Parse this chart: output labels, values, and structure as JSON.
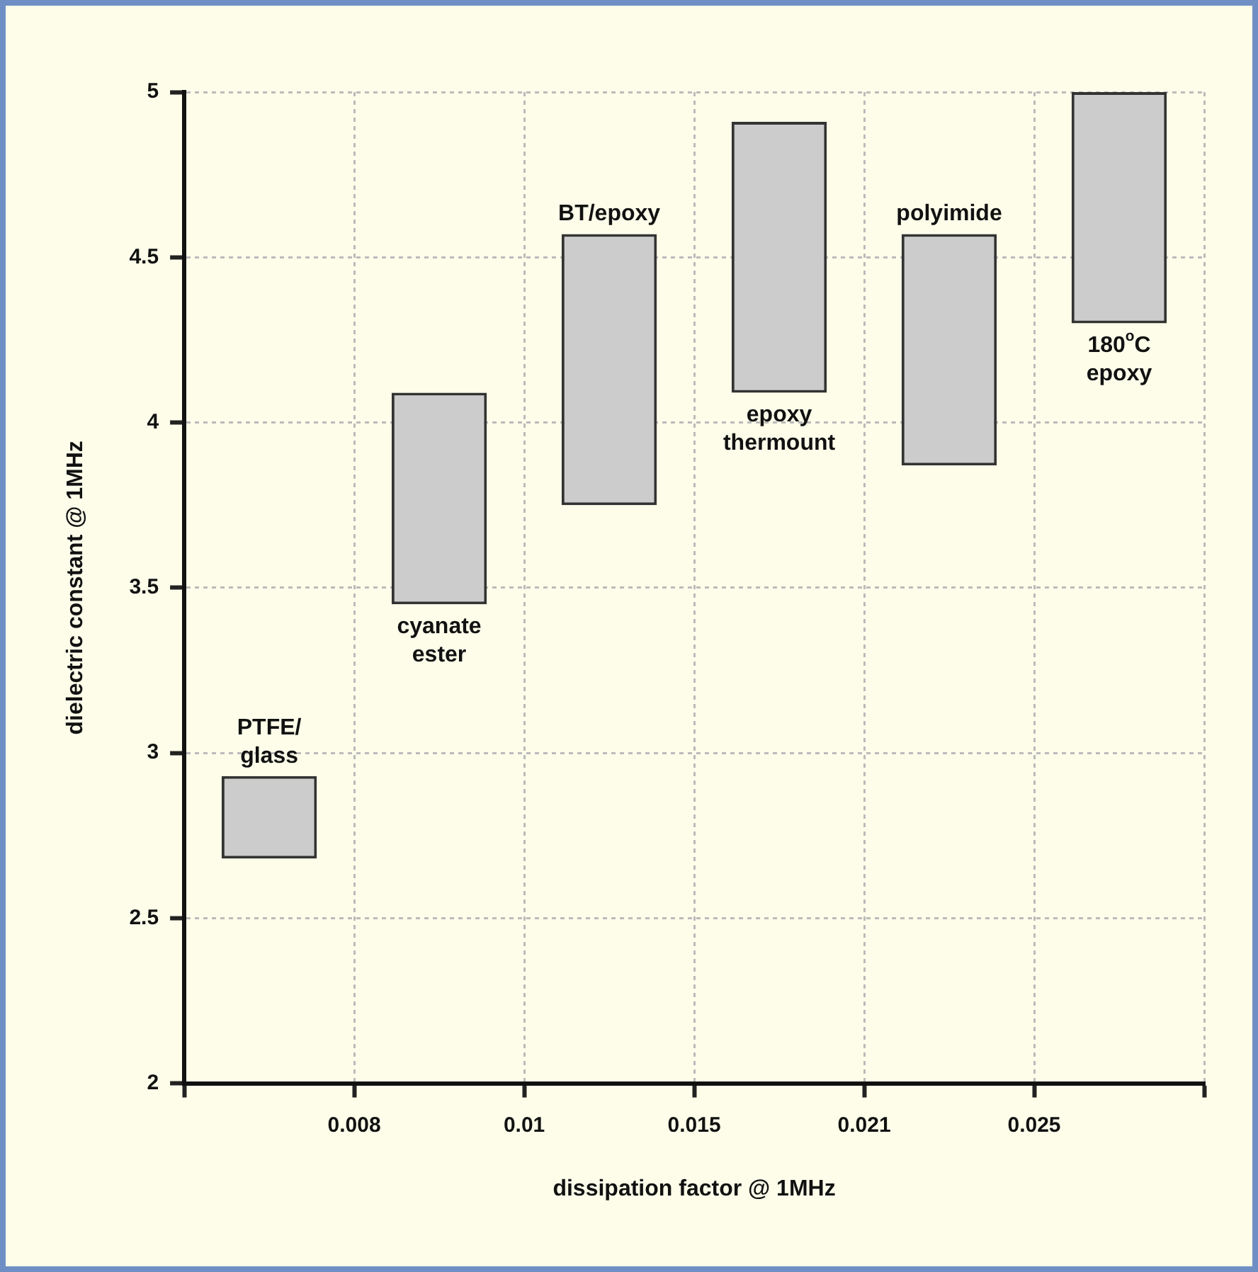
{
  "chart_data": {
    "type": "bar",
    "xlabel": "dissipation factor @ 1MHz",
    "ylabel": "dielectric constant @ 1MHz",
    "categories": [
      "PTFE/\nglass",
      "cyanate\nester",
      "BT/epoxy",
      "epoxy\nthermount",
      "polyimide",
      "180$^{o}$C\nepoxy"
    ],
    "base": [
      2.68,
      3.45,
      3.75,
      4.09,
      3.87,
      4.3
    ],
    "values": [
      0.25,
      0.64,
      0.82,
      0.82,
      0.7,
      0.7
    ],
    "color": "#cccccc",
    "ylim": [
      2,
      5
    ],
    "yticks": [
      2,
      2.5,
      3,
      3.5,
      4,
      4.5,
      5
    ],
    "grid": true,
    "legend": false,
    "annotations": [
      "0.008",
      "0.01",
      "0.015",
      "0.021",
      "0.025"
    ]
  }
}
